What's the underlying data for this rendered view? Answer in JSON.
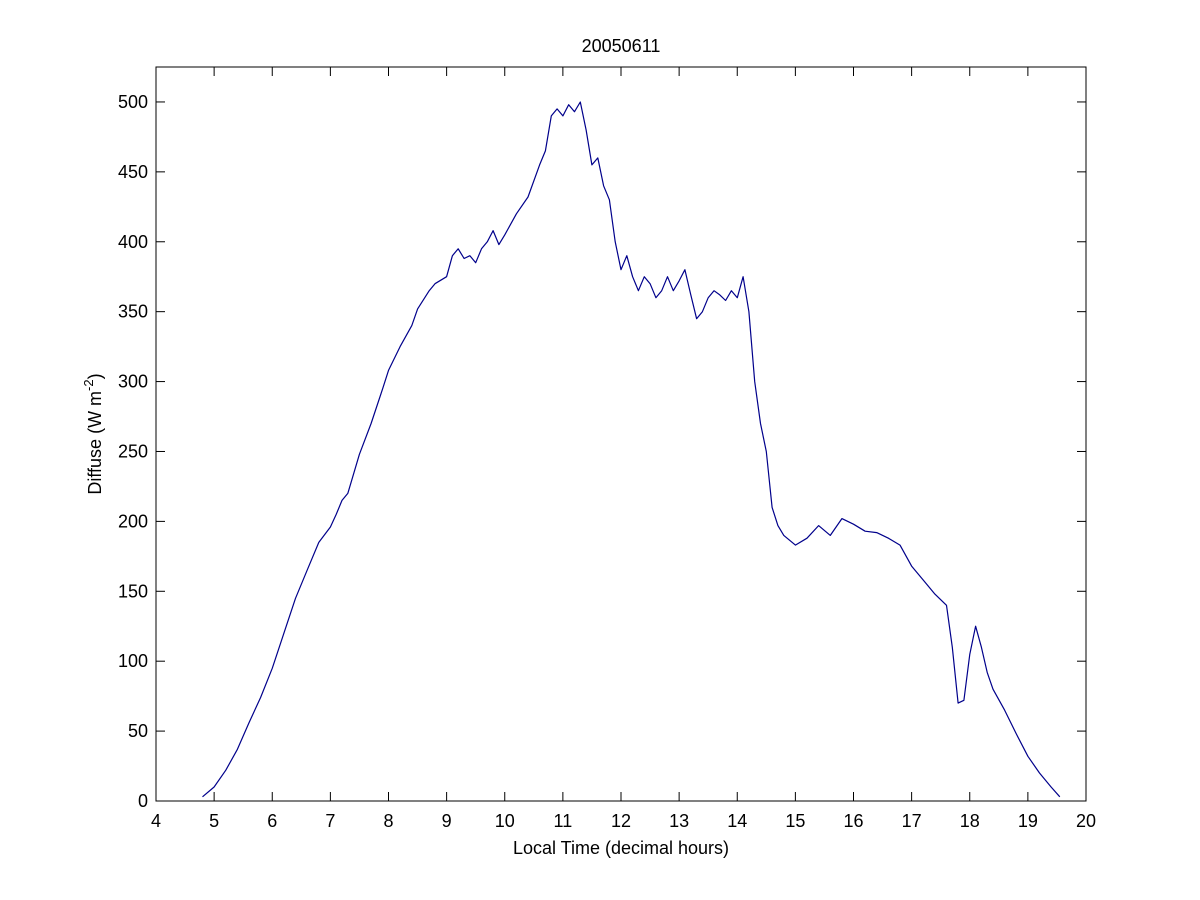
{
  "chart_data": {
    "type": "line",
    "title": "20050611",
    "xlabel": "Local Time (decimal hours)",
    "ylabel": {
      "base": "Diffuse (W m",
      "superscript": "-2",
      "close": ")"
    },
    "xlim": [
      4,
      20
    ],
    "ylim": [
      0,
      525
    ],
    "xticks": [
      4,
      5,
      6,
      7,
      8,
      9,
      10,
      11,
      12,
      13,
      14,
      15,
      16,
      17,
      18,
      19,
      20
    ],
    "yticks": [
      0,
      50,
      100,
      150,
      200,
      250,
      300,
      350,
      400,
      450,
      500
    ],
    "grid": false,
    "legend": "none",
    "colors": {
      "series": "#00008b",
      "axes": "#000000",
      "background": "#ffffff"
    },
    "series": [
      {
        "x": [
          4.8,
          5.0,
          5.2,
          5.4,
          5.6,
          5.8,
          6.0,
          6.2,
          6.4,
          6.6,
          6.8,
          7.0,
          7.1,
          7.2,
          7.3,
          7.5,
          7.7,
          7.9,
          8.0,
          8.2,
          8.4,
          8.5,
          8.7,
          8.8,
          9.0,
          9.1,
          9.2,
          9.3,
          9.4,
          9.5,
          9.6,
          9.7,
          9.8,
          9.9,
          10.0,
          10.2,
          10.4,
          10.6,
          10.7,
          10.8,
          10.9,
          11.0,
          11.1,
          11.2,
          11.3,
          11.4,
          11.5,
          11.6,
          11.7,
          11.8,
          11.9,
          12.0,
          12.1,
          12.2,
          12.3,
          12.4,
          12.5,
          12.6,
          12.7,
          12.8,
          12.9,
          13.0,
          13.1,
          13.2,
          13.3,
          13.4,
          13.5,
          13.6,
          13.7,
          13.8,
          13.9,
          14.0,
          14.1,
          14.2,
          14.3,
          14.4,
          14.5,
          14.6,
          14.7,
          14.8,
          15.0,
          15.2,
          15.4,
          15.6,
          15.8,
          16.0,
          16.2,
          16.4,
          16.6,
          16.8,
          17.0,
          17.2,
          17.4,
          17.6,
          17.7,
          17.8,
          17.9,
          18.0,
          18.1,
          18.2,
          18.3,
          18.4,
          18.6,
          18.8,
          19.0,
          19.2,
          19.4,
          19.55
        ],
        "values": [
          3,
          10,
          22,
          37,
          56,
          74,
          95,
          120,
          145,
          165,
          185,
          196,
          205,
          215,
          220,
          248,
          270,
          295,
          308,
          325,
          340,
          352,
          365,
          370,
          375,
          390,
          395,
          388,
          390,
          385,
          395,
          400,
          408,
          398,
          405,
          420,
          432,
          455,
          465,
          490,
          495,
          490,
          498,
          493,
          500,
          480,
          455,
          460,
          440,
          430,
          400,
          380,
          390,
          375,
          365,
          375,
          370,
          360,
          365,
          375,
          365,
          372,
          380,
          362,
          345,
          350,
          360,
          365,
          362,
          358,
          365,
          360,
          375,
          350,
          300,
          270,
          250,
          210,
          197,
          190,
          183,
          188,
          197,
          190,
          202,
          198,
          193,
          192,
          188,
          183,
          168,
          158,
          148,
          140,
          110,
          70,
          72,
          105,
          125,
          110,
          92,
          80,
          65,
          48,
          32,
          20,
          10,
          3
        ]
      }
    ]
  }
}
